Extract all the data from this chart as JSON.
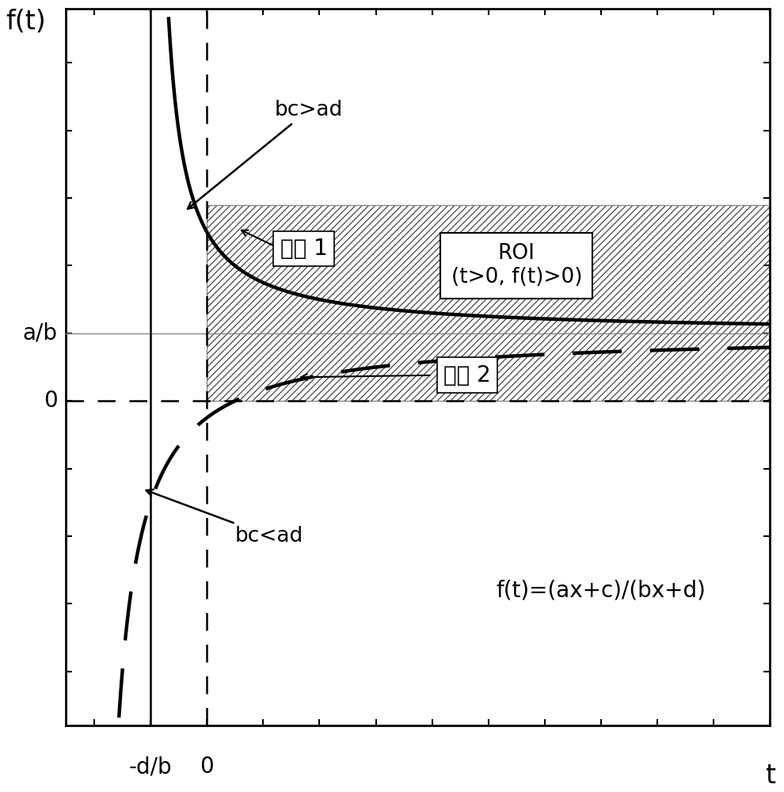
{
  "xlabel": "t",
  "ylabel": "f(t)",
  "formula_text": "f(t)=(ax+c)/(bx+d)",
  "xlabel_fontsize": 24,
  "ylabel_fontsize": 24,
  "formula_fontsize": 20,
  "annotation_fontsize": 19,
  "label_fontsize": 20,
  "type_fontsize": 20,
  "axis_label_ab": "a/b",
  "axis_label_db": "-d/b",
  "axis_label_0_x": "0",
  "axis_label_0_y": "0",
  "roi_box_line1": "ROI",
  "roi_box_line2": "(t>0, f(t)>0)",
  "type1_text": "类型 1",
  "type2_text": "类型 2",
  "bc_gt_ad_text": "bc>ad",
  "bc_lt_ad_text": "bc<ad",
  "line_lw_solid": 3.2,
  "line_lw_dashed": 3.2,
  "bg_color": "#ffffff",
  "xlim": [
    -2.5,
    10.0
  ],
  "ylim": [
    -4.8,
    5.8
  ],
  "y_hatch_upper": 2.9,
  "y_ab": 1.0,
  "x_db": -1.0,
  "a1": 2.0,
  "b1": 2.0,
  "c1": 5.0,
  "d1": 2.0,
  "a2": 2.0,
  "b2": 2.0,
  "c2": -1.0,
  "d2": 4.0
}
